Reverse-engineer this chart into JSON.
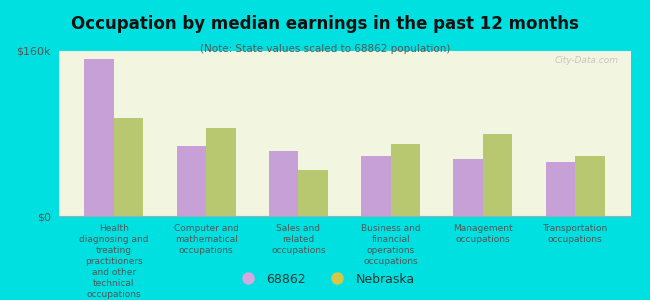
{
  "title": "Occupation by median earnings in the past 12 months",
  "subtitle": "(Note: State values scaled to 68862 population)",
  "background_color": "#00e0e0",
  "plot_bg_color": "#f2f5e0",
  "categories": [
    "Health\ndiagnosing and\ntreating\npractitioners\nand other\ntechnical\noccupations",
    "Computer and\nmathematical\noccupations",
    "Sales and\nrelated\noccupations",
    "Business and\nfinancial\noperations\noccupations",
    "Management\noccupations",
    "Transportation\noccupations"
  ],
  "values_68862": [
    152000,
    68000,
    63000,
    58000,
    55000,
    52000
  ],
  "values_nebraska": [
    95000,
    85000,
    45000,
    70000,
    80000,
    58000
  ],
  "color_68862": "#c8a0d8",
  "color_nebraska": "#b8c870",
  "ylim": [
    0,
    160000
  ],
  "ytick_labels": [
    "$0",
    "$160k"
  ],
  "legend_labels": [
    "68862",
    "Nebraska"
  ],
  "legend_color_68862": "#d4a8e0",
  "legend_color_nebraska": "#d4c84a",
  "watermark": "City-Data.com"
}
